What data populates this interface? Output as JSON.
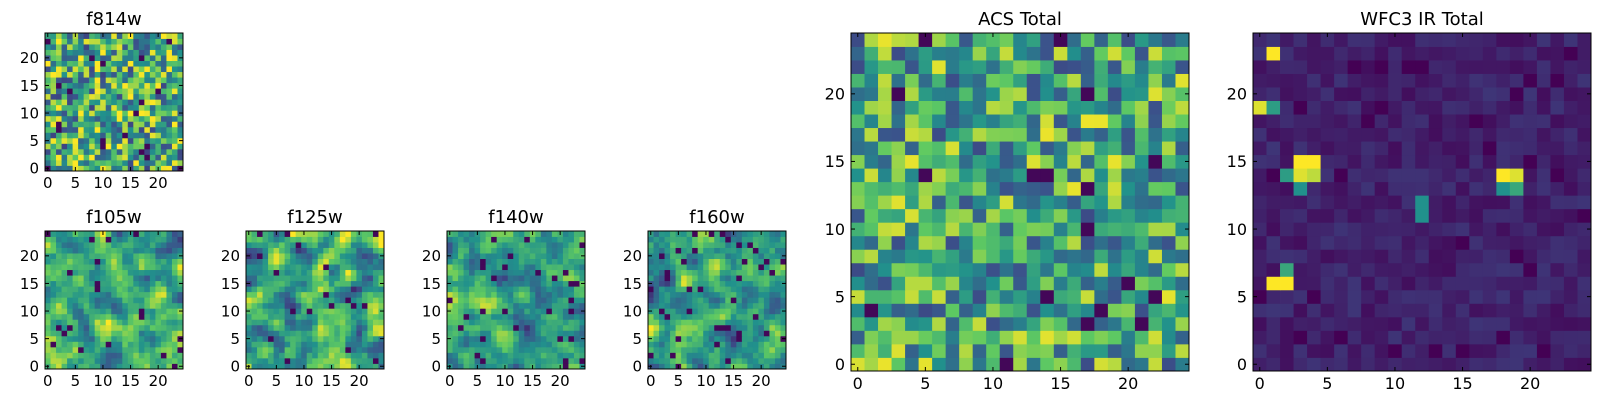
{
  "colormap": {
    "name": "viridis",
    "stops": [
      "#440154",
      "#3b528b",
      "#21918c",
      "#5ec962",
      "#fde725"
    ]
  },
  "chart_data": [
    {
      "id": "f814w",
      "type": "heatmap",
      "title": "f814w",
      "grid_size": 25,
      "xlim": [
        0,
        24
      ],
      "ylim": [
        0,
        24
      ],
      "xticks": [
        0,
        5,
        10,
        15,
        20
      ],
      "yticks": [
        0,
        5,
        10,
        15,
        20
      ],
      "xlabel": "",
      "ylabel": "",
      "value_range": [
        0,
        1
      ],
      "field": {
        "kind": "noise",
        "seed": 814,
        "mean": 0.62,
        "spread": 0.55,
        "smooth": 0,
        "background": 0,
        "dark_fraction": 0.05,
        "sources": []
      }
    },
    {
      "id": "f105w",
      "type": "heatmap",
      "title": "f105w",
      "grid_size": 25,
      "xlim": [
        0,
        24
      ],
      "ylim": [
        0,
        24
      ],
      "xticks": [
        0,
        5,
        10,
        15,
        20
      ],
      "yticks": [
        0,
        5,
        10,
        15,
        20
      ],
      "xlabel": "",
      "ylabel": "",
      "value_range": [
        0,
        1
      ],
      "field": {
        "kind": "noise",
        "seed": 105,
        "mean": 0.6,
        "spread": 0.55,
        "smooth": 1,
        "background": 0,
        "dark_fraction": 0.03,
        "sources": []
      }
    },
    {
      "id": "f125w",
      "type": "heatmap",
      "title": "f125w",
      "grid_size": 25,
      "xlim": [
        0,
        24
      ],
      "ylim": [
        0,
        24
      ],
      "xticks": [
        0,
        5,
        10,
        15,
        20
      ],
      "yticks": [
        0,
        5,
        10,
        15,
        20
      ],
      "xlabel": "",
      "ylabel": "",
      "value_range": [
        0,
        1
      ],
      "field": {
        "kind": "noise",
        "seed": 125,
        "mean": 0.58,
        "spread": 0.6,
        "smooth": 1,
        "background": 0,
        "dark_fraction": 0.04,
        "sources": []
      }
    },
    {
      "id": "f140w",
      "type": "heatmap",
      "title": "f140w",
      "grid_size": 25,
      "xlim": [
        0,
        24
      ],
      "ylim": [
        0,
        24
      ],
      "xticks": [
        0,
        5,
        10,
        15,
        20
      ],
      "yticks": [
        0,
        5,
        10,
        15,
        20
      ],
      "xlabel": "",
      "ylabel": "",
      "value_range": [
        0,
        1
      ],
      "field": {
        "kind": "noise",
        "seed": 140,
        "mean": 0.6,
        "spread": 0.6,
        "smooth": 1,
        "background": 0,
        "dark_fraction": 0.05,
        "sources": []
      }
    },
    {
      "id": "f160w",
      "type": "heatmap",
      "title": "f160w",
      "grid_size": 25,
      "xlim": [
        0,
        24
      ],
      "ylim": [
        0,
        24
      ],
      "xticks": [
        0,
        5,
        10,
        15,
        20
      ],
      "yticks": [
        0,
        5,
        10,
        15,
        20
      ],
      "xlabel": "",
      "ylabel": "",
      "value_range": [
        0,
        1
      ],
      "field": {
        "kind": "noise",
        "seed": 160,
        "mean": 0.55,
        "spread": 0.6,
        "smooth": 1,
        "background": 0,
        "dark_fraction": 0.05,
        "sources": []
      }
    },
    {
      "id": "acs_total",
      "type": "heatmap",
      "title": "ACS Total",
      "grid_size": 25,
      "xlim": [
        0,
        24
      ],
      "ylim": [
        0,
        24
      ],
      "xticks": [
        0,
        5,
        10,
        15,
        20
      ],
      "yticks": [
        0,
        5,
        10,
        15,
        20
      ],
      "xlabel": "",
      "ylabel": "",
      "value_range": [
        0,
        1
      ],
      "field": {
        "kind": "noise",
        "seed": 2024,
        "mean": 0.6,
        "spread": 0.5,
        "smooth": 0,
        "background": 0,
        "dark_fraction": 0.035,
        "sources": []
      }
    },
    {
      "id": "wfc3_ir_total",
      "type": "heatmap",
      "title": "WFC3 IR Total",
      "grid_size": 25,
      "xlim": [
        0,
        24
      ],
      "ylim": [
        0,
        24
      ],
      "xticks": [
        0,
        5,
        10,
        15,
        20
      ],
      "yticks": [
        0,
        5,
        10,
        15,
        20
      ],
      "xlabel": "",
      "ylabel": "",
      "value_range": [
        0,
        1
      ],
      "field": {
        "kind": "sources",
        "seed": 3,
        "mean": 0.1,
        "spread": 0.12,
        "smooth": 0,
        "background": 0.1,
        "dark_fraction": 0.06,
        "sources": [
          {
            "x": 1,
            "y": 23,
            "value": 1.0
          },
          {
            "x": 0,
            "y": 19,
            "value": 0.95
          },
          {
            "x": 1,
            "y": 19,
            "value": 0.55
          },
          {
            "x": 3,
            "y": 15,
            "value": 1.0
          },
          {
            "x": 4,
            "y": 15,
            "value": 1.0
          },
          {
            "x": 3,
            "y": 14,
            "value": 0.95
          },
          {
            "x": 4,
            "y": 14,
            "value": 0.9
          },
          {
            "x": 2,
            "y": 14,
            "value": 0.55
          },
          {
            "x": 3,
            "y": 13,
            "value": 0.5
          },
          {
            "x": 18,
            "y": 14,
            "value": 1.0
          },
          {
            "x": 19,
            "y": 14,
            "value": 0.95
          },
          {
            "x": 19,
            "y": 13,
            "value": 0.6
          },
          {
            "x": 18,
            "y": 13,
            "value": 0.5
          },
          {
            "x": 12,
            "y": 12,
            "value": 0.5
          },
          {
            "x": 12,
            "y": 11,
            "value": 0.5
          },
          {
            "x": 2,
            "y": 7,
            "value": 0.6
          },
          {
            "x": 1,
            "y": 6,
            "value": 1.0
          },
          {
            "x": 2,
            "y": 6,
            "value": 1.0
          }
        ]
      }
    }
  ]
}
